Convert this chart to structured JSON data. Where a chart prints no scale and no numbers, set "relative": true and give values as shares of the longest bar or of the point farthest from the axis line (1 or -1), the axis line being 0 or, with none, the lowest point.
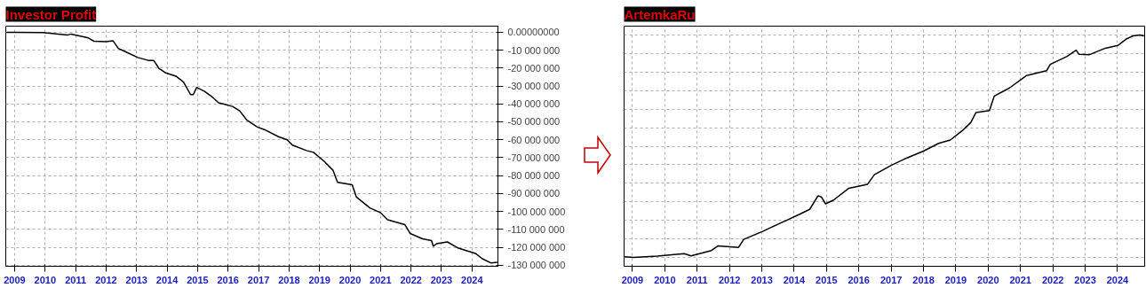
{
  "chart_data": [
    {
      "type": "line",
      "title": "Investor Profit",
      "color": "#000000",
      "grid": true,
      "x": [
        2008.71,
        2009.0,
        2009.92,
        2010.73,
        2010.85,
        2011.42,
        2011.6,
        2012.0,
        2012.23,
        2012.4,
        2012.69,
        2013.04,
        2013.38,
        2013.56,
        2013.73,
        2013.96,
        2014.31,
        2014.54,
        2014.77,
        2014.86,
        2014.97,
        2015.23,
        2015.46,
        2015.69,
        2016.15,
        2016.38,
        2016.61,
        2016.96,
        2017.19,
        2017.65,
        2017.94,
        2018.11,
        2018.57,
        2018.8,
        2019.15,
        2019.44,
        2019.59,
        2020.07,
        2020.21,
        2020.65,
        2020.99,
        2021.23,
        2021.8,
        2021.97,
        2022.38,
        2022.67,
        2022.73,
        2022.84,
        2023.19,
        2023.53,
        2024.11,
        2024.34,
        2024.63,
        2024.83
      ],
      "values": [
        0,
        0,
        -200000,
        -1600000,
        -1000000,
        -3200000,
        -5000000,
        -5200000,
        -4800000,
        -9000000,
        -11300000,
        -14100000,
        -15700000,
        -15700000,
        -20100000,
        -22700000,
        -24700000,
        -27800000,
        -34800000,
        -34800000,
        -30800000,
        -33000000,
        -35800000,
        -39400000,
        -41400000,
        -43900000,
        -48900000,
        -52900000,
        -54300000,
        -58300000,
        -60000000,
        -63000000,
        -66000000,
        -67000000,
        -72000000,
        -77000000,
        -83700000,
        -85100000,
        -92000000,
        -98000000,
        -100600000,
        -104600000,
        -107400000,
        -112300000,
        -115300000,
        -116300000,
        -119400000,
        -118000000,
        -117000000,
        -120300000,
        -123400000,
        -126400000,
        -128800000,
        -128400000
      ],
      "xlim": [
        2008.71,
        2024.85
      ],
      "xticks": [
        2009,
        2010,
        2011,
        2012,
        2013,
        2014,
        2015,
        2016,
        2017,
        2018,
        2019,
        2020,
        2021,
        2022,
        2023,
        2024
      ],
      "ylim": [
        -130600000,
        3400000
      ],
      "yticks": [
        {
          "value": 0,
          "label": "0.00000000"
        },
        {
          "value": -10000000,
          "label": "-10 000 000"
        },
        {
          "value": -20000000,
          "label": "-20 000 000"
        },
        {
          "value": -30000000,
          "label": "-30 000 000"
        },
        {
          "value": -40000000,
          "label": "-40 000 000"
        },
        {
          "value": -50000000,
          "label": "-50 000 000"
        },
        {
          "value": -60000000,
          "label": "-60 000 000"
        },
        {
          "value": -70000000,
          "label": "-70 000 000"
        },
        {
          "value": -80000000,
          "label": "-80 000 000"
        },
        {
          "value": -90000000,
          "label": "-90 000 000"
        },
        {
          "value": -100000000,
          "label": "-100 000 000"
        },
        {
          "value": -110000000,
          "label": "-110 000 000"
        },
        {
          "value": -120000000,
          "label": "-120 000 000"
        },
        {
          "value": -130000000,
          "label": "-130 000 000"
        }
      ]
    },
    {
      "type": "line",
      "title": "ArtemkaRu",
      "color": "#000000",
      "grid": true,
      "relative": true,
      "tick_labels": "x",
      "x": [
        2008.76,
        2009.03,
        2009.77,
        2010.6,
        2010.81,
        2011.44,
        2011.65,
        2012.28,
        2012.44,
        2013.01,
        2013.54,
        2013.75,
        2014.17,
        2014.48,
        2014.74,
        2014.84,
        2014.97,
        2015.22,
        2015.69,
        2016.27,
        2016.48,
        2017.0,
        2017.42,
        2018.0,
        2018.47,
        2018.83,
        2019.2,
        2019.46,
        2019.62,
        2020.04,
        2020.19,
        2020.66,
        2021.19,
        2021.81,
        2021.92,
        2022.44,
        2022.72,
        2022.81,
        2023.12,
        2023.59,
        2024.01,
        2024.27,
        2024.48,
        2024.69,
        2024.82
      ],
      "values": [
        0.003,
        0,
        0.006,
        0.017,
        0.007,
        0.031,
        0.052,
        0.045,
        0.081,
        0.116,
        0.152,
        0.166,
        0.194,
        0.216,
        0.277,
        0.272,
        0.241,
        0.258,
        0.311,
        0.329,
        0.372,
        0.414,
        0.443,
        0.478,
        0.513,
        0.528,
        0.57,
        0.606,
        0.651,
        0.66,
        0.726,
        0.762,
        0.818,
        0.84,
        0.868,
        0.904,
        0.932,
        0.913,
        0.911,
        0.939,
        0.953,
        0.982,
        0.996,
        1.0,
        0.996
      ],
      "xlim": [
        2008.74,
        2024.84
      ],
      "xticks": [
        2009,
        2010,
        2011,
        2012,
        2013,
        2014,
        2015,
        2016,
        2017,
        2018,
        2019,
        2020,
        2021,
        2022,
        2023,
        2024
      ]
    }
  ]
}
